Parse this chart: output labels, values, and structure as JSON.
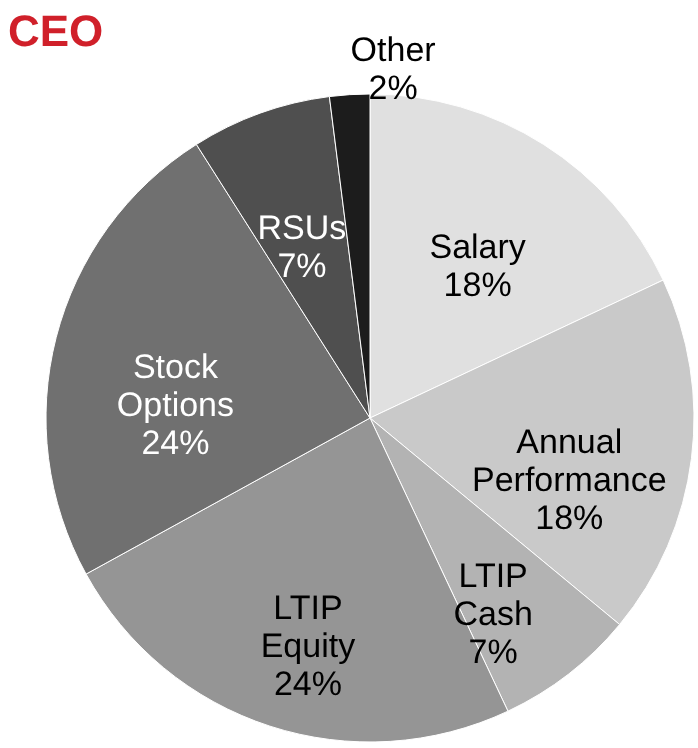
{
  "chart_data": {
    "type": "pie",
    "title": "CEO",
    "categories": [
      "Salary",
      "Annual Performance",
      "LTIP Cash",
      "LTIP Equity",
      "Stock Options",
      "RSUs",
      "Other"
    ],
    "values": [
      18,
      18,
      7,
      24,
      24,
      7,
      2
    ],
    "value_labels": [
      "18%",
      "18%",
      "7%",
      "24%",
      "24%",
      "7%",
      "2%"
    ],
    "colors": [
      "#e0e0e0",
      "#c9c9c9",
      "#b3b3b3",
      "#959595",
      "#707070",
      "#4f4f4f",
      "#1c1c1c"
    ]
  }
}
